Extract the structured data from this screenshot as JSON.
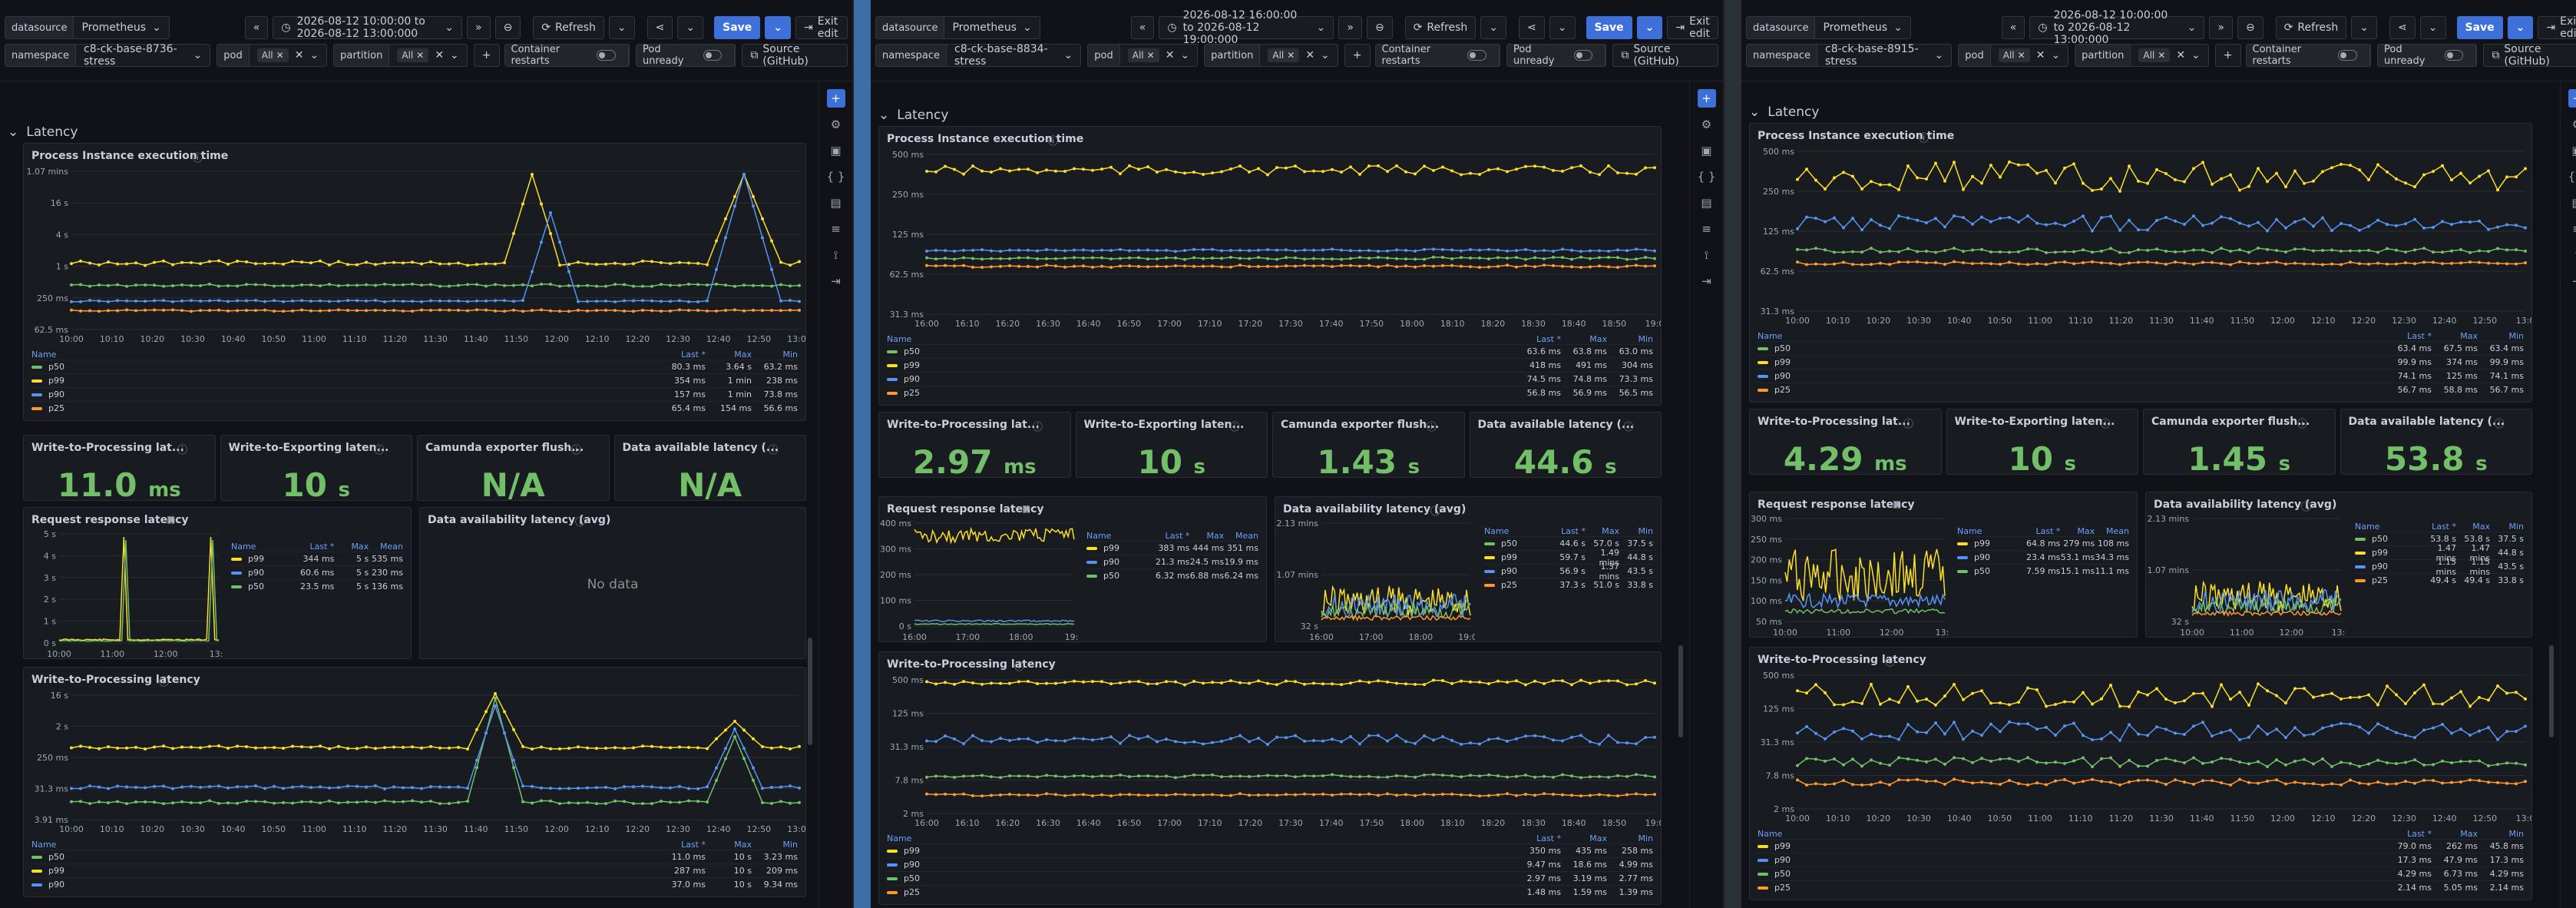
{
  "common": {
    "datasource_label": "datasource",
    "datasource_value": "Prometheus",
    "refresh": "Refresh",
    "save": "Save",
    "exit_edit": "Exit edit",
    "namespace_label": "namespace",
    "pod_label": "pod",
    "pod_value": "All",
    "partition_label": "partition",
    "partition_value": "All",
    "container_restarts": "Container restarts",
    "pod_unready": "Pod unready",
    "source": "Source (GitHub)",
    "row_title": "Latency",
    "p_exec": "Process Instance execution time",
    "p_w2p_short": "Write-to-Processing lat...",
    "p_w2e_short": "Write-to-Exporting laten...",
    "p_flush": "Camunda exporter flush...",
    "p_avail_short": "Data available latency (...",
    "p_req": "Request response latency",
    "p_avail_avg": "Data availability latency (avg)",
    "p_w2p": "Write-to-Processing latency",
    "no_data": "No data",
    "leg_name": "Name",
    "leg_last": "Last *",
    "leg_max": "Max",
    "leg_min": "Min",
    "leg_mean": "Mean"
  },
  "windows": [
    {
      "time_range": "2026-08-12 10:00:00 to 2026-08-12 13:00:000",
      "namespace": "c8-ck-base-8736-stress",
      "x_ticks": [
        "10:00",
        "10:10",
        "10:20",
        "10:30",
        "10:40",
        "10:50",
        "11:00",
        "11:10",
        "11:20",
        "11:30",
        "11:40",
        "11:50",
        "12:00",
        "12:10",
        "12:20",
        "12:30",
        "12:40",
        "12:50",
        "13:00"
      ],
      "exec": {
        "y_ticks": [
          "1.07 mins",
          "16 s",
          "4 s",
          "1 s",
          "250 ms",
          "62.5 ms"
        ],
        "rows": [
          [
            "p50",
            "80.3 ms",
            "3.64 s",
            "63.2 ms"
          ],
          [
            "p99",
            "354 ms",
            "1 min",
            "238 ms"
          ],
          [
            "p90",
            "157 ms",
            "1 min",
            "73.8 ms"
          ],
          [
            "p25",
            "65.4 ms",
            "154 ms",
            "56.6 ms"
          ]
        ]
      },
      "stats": [
        {
          "v": "11.0",
          "u": "ms"
        },
        {
          "v": "10",
          "u": "s"
        },
        {
          "v": "N/A",
          "u": ""
        },
        {
          "v": "N/A",
          "u": ""
        }
      ],
      "req": {
        "y_ticks": [
          "5 s",
          "4 s",
          "3 s",
          "2 s",
          "1 s",
          "0 s"
        ],
        "x_ticks": [
          "10:00",
          "11:00",
          "12:00",
          "13:0"
        ],
        "rows": [
          [
            "p99",
            "344 ms",
            "5 s",
            "535 ms"
          ],
          [
            "p90",
            "60.6 ms",
            "5 s",
            "230 ms"
          ],
          [
            "p50",
            "23.5 ms",
            "5 s",
            "136 ms"
          ]
        ]
      },
      "avail": null,
      "w2p": {
        "y_ticks": [
          "16 s",
          "2 s",
          "250 ms",
          "31.3 ms",
          "3.91 ms"
        ],
        "rows": [
          [
            "p50",
            "11.0 ms",
            "10 s",
            "3.23 ms"
          ],
          [
            "p99",
            "287 ms",
            "10 s",
            "209 ms"
          ],
          [
            "p90",
            "37.0 ms",
            "10 s",
            "9.34 ms"
          ]
        ]
      }
    },
    {
      "time_range": "2026-08-12 16:00:00 to 2026-08-12 19:00:000",
      "namespace": "c8-ck-base-8834-stress",
      "x_ticks": [
        "16:00",
        "16:10",
        "16:20",
        "16:30",
        "16:40",
        "16:50",
        "17:00",
        "17:10",
        "17:20",
        "17:30",
        "17:40",
        "17:50",
        "18:00",
        "18:10",
        "18:20",
        "18:30",
        "18:40",
        "18:50",
        "19:0"
      ],
      "exec": {
        "y_ticks": [
          "500 ms",
          "250 ms",
          "125 ms",
          "62.5 ms",
          "31.3 ms"
        ],
        "rows": [
          [
            "p50",
            "63.6 ms",
            "63.8 ms",
            "63.0 ms"
          ],
          [
            "p99",
            "418 ms",
            "491 ms",
            "304 ms"
          ],
          [
            "p90",
            "74.5 ms",
            "74.8 ms",
            "73.3 ms"
          ],
          [
            "p25",
            "56.8 ms",
            "56.9 ms",
            "56.5 ms"
          ]
        ]
      },
      "stats": [
        {
          "v": "2.97",
          "u": "ms"
        },
        {
          "v": "10",
          "u": "s"
        },
        {
          "v": "1.43",
          "u": "s"
        },
        {
          "v": "44.6",
          "u": "s"
        }
      ],
      "req": {
        "y_ticks": [
          "400 ms",
          "300 ms",
          "200 ms",
          "100 ms",
          "0 s"
        ],
        "x_ticks": [
          "16:00",
          "17:00",
          "18:00",
          "19:0"
        ],
        "rows": [
          [
            "p99",
            "383 ms",
            "444 ms",
            "351 ms"
          ],
          [
            "p90",
            "21.3 ms",
            "24.5 ms",
            "19.9 ms"
          ],
          [
            "p50",
            "6.32 ms",
            "6.88 ms",
            "6.24 ms"
          ]
        ]
      },
      "avail": {
        "y_ticks": [
          "2.13 mins",
          "1.07 mins",
          "32 s"
        ],
        "x_ticks": [
          "16:00",
          "17:00",
          "18:00",
          "19:00"
        ],
        "rows": [
          [
            "p50",
            "44.6 s",
            "57.0 s",
            "37.5 s"
          ],
          [
            "p99",
            "59.7 s",
            "1.49 mins",
            "44.8 s"
          ],
          [
            "p90",
            "56.9 s",
            "1.37 mins",
            "43.5 s"
          ],
          [
            "p25",
            "37.3 s",
            "51.0 s",
            "33.8 s"
          ]
        ]
      },
      "w2p": {
        "y_ticks": [
          "500 ms",
          "125 ms",
          "31.3 ms",
          "7.8 ms",
          "2 ms"
        ],
        "rows": [
          [
            "p99",
            "350 ms",
            "435 ms",
            "258 ms"
          ],
          [
            "p90",
            "9.47 ms",
            "18.6 ms",
            "4.99 ms"
          ],
          [
            "p50",
            "2.97 ms",
            "3.19 ms",
            "2.77 ms"
          ],
          [
            "p25",
            "1.48 ms",
            "1.59 ms",
            "1.39 ms"
          ]
        ]
      }
    },
    {
      "time_range": "2026-08-12 10:00:00 to 2026-08-12 13:00:000",
      "namespace": "c8-ck-base-8915-stress",
      "x_ticks": [
        "10:00",
        "10:10",
        "10:20",
        "10:30",
        "10:40",
        "10:50",
        "11:00",
        "11:10",
        "11:20",
        "11:30",
        "11:40",
        "11:50",
        "12:00",
        "12:10",
        "12:20",
        "12:30",
        "12:40",
        "12:50",
        "13:0"
      ],
      "exec": {
        "y_ticks": [
          "500 ms",
          "250 ms",
          "125 ms",
          "62.5 ms",
          "31.3 ms"
        ],
        "rows": [
          [
            "p50",
            "63.4 ms",
            "67.5 ms",
            "63.4 ms"
          ],
          [
            "p99",
            "99.9 ms",
            "374 ms",
            "99.9 ms"
          ],
          [
            "p90",
            "74.1 ms",
            "125 ms",
            "74.1 ms"
          ],
          [
            "p25",
            "56.7 ms",
            "58.8 ms",
            "56.7 ms"
          ]
        ]
      },
      "stats": [
        {
          "v": "4.29",
          "u": "ms"
        },
        {
          "v": "10",
          "u": "s"
        },
        {
          "v": "1.45",
          "u": "s"
        },
        {
          "v": "53.8",
          "u": "s"
        }
      ],
      "req": {
        "y_ticks": [
          "300 ms",
          "250 ms",
          "200 ms",
          "150 ms",
          "100 ms",
          "50 ms"
        ],
        "x_ticks": [
          "10:00",
          "11:00",
          "12:00",
          "13:0"
        ],
        "rows": [
          [
            "p99",
            "64.8 ms",
            "279 ms",
            "108 ms"
          ],
          [
            "p90",
            "23.4 ms",
            "53.1 ms",
            "34.3 ms"
          ],
          [
            "p50",
            "7.59 ms",
            "15.1 ms",
            "11.1 ms"
          ]
        ]
      },
      "avail": {
        "y_ticks": [
          "2.13 mins",
          "1.07 mins",
          "32 s"
        ],
        "x_ticks": [
          "10:00",
          "11:00",
          "12:00",
          "13:0"
        ],
        "rows": [
          [
            "p50",
            "53.8 s",
            "53.8 s",
            "37.5 s"
          ],
          [
            "p99",
            "1.47 mins",
            "1.47 mins",
            "44.8 s"
          ],
          [
            "p90",
            "1.15 mins",
            "1.15 mins",
            "43.5 s"
          ],
          [
            "p25",
            "49.4 s",
            "49.4 s",
            "33.8 s"
          ]
        ]
      },
      "w2p": {
        "y_ticks": [
          "500 ms",
          "125 ms",
          "31.3 ms",
          "7.8 ms",
          "2 ms"
        ],
        "rows": [
          [
            "p99",
            "79.0 ms",
            "262 ms",
            "45.8 ms"
          ],
          [
            "p90",
            "17.3 ms",
            "47.9 ms",
            "17.3 ms"
          ],
          [
            "p50",
            "4.29 ms",
            "6.73 ms",
            "4.29 ms"
          ],
          [
            "p25",
            "2.14 ms",
            "5.05 ms",
            "2.14 ms"
          ]
        ]
      }
    }
  ],
  "colors": {
    "p50": "#73bf69",
    "p99": "#fade2a",
    "p90": "#5794f2",
    "p25": "#ff9830",
    "accent": "#3d71d9",
    "green": "#73bf69"
  }
}
